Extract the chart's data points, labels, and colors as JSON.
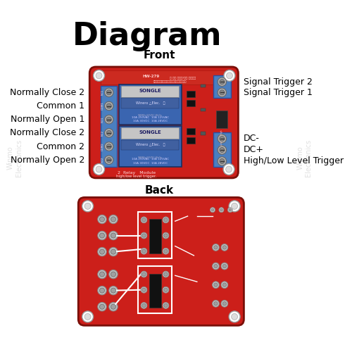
{
  "title": "Diagram",
  "front_label": "Front",
  "back_label": "Back",
  "left_labels": [
    "Normally Open 2",
    "Common 2",
    "Normally Close 2",
    "Normally Open 1",
    "Common 1",
    "Normally Close 2"
  ],
  "right_labels": [
    "Signal Trigger 2",
    "Signal Trigger 1",
    "DC-",
    "DC+",
    "High/Low Level Trigger"
  ],
  "bg_color": "#ffffff",
  "board_red": "#cc1f1a",
  "board_dark_red": "#8a0f08",
  "relay_blue": "#3a65b0",
  "terminal_blue": "#4a7fc0",
  "title_fontsize": 32,
  "label_fontsize": 9,
  "section_fontsize": 11
}
